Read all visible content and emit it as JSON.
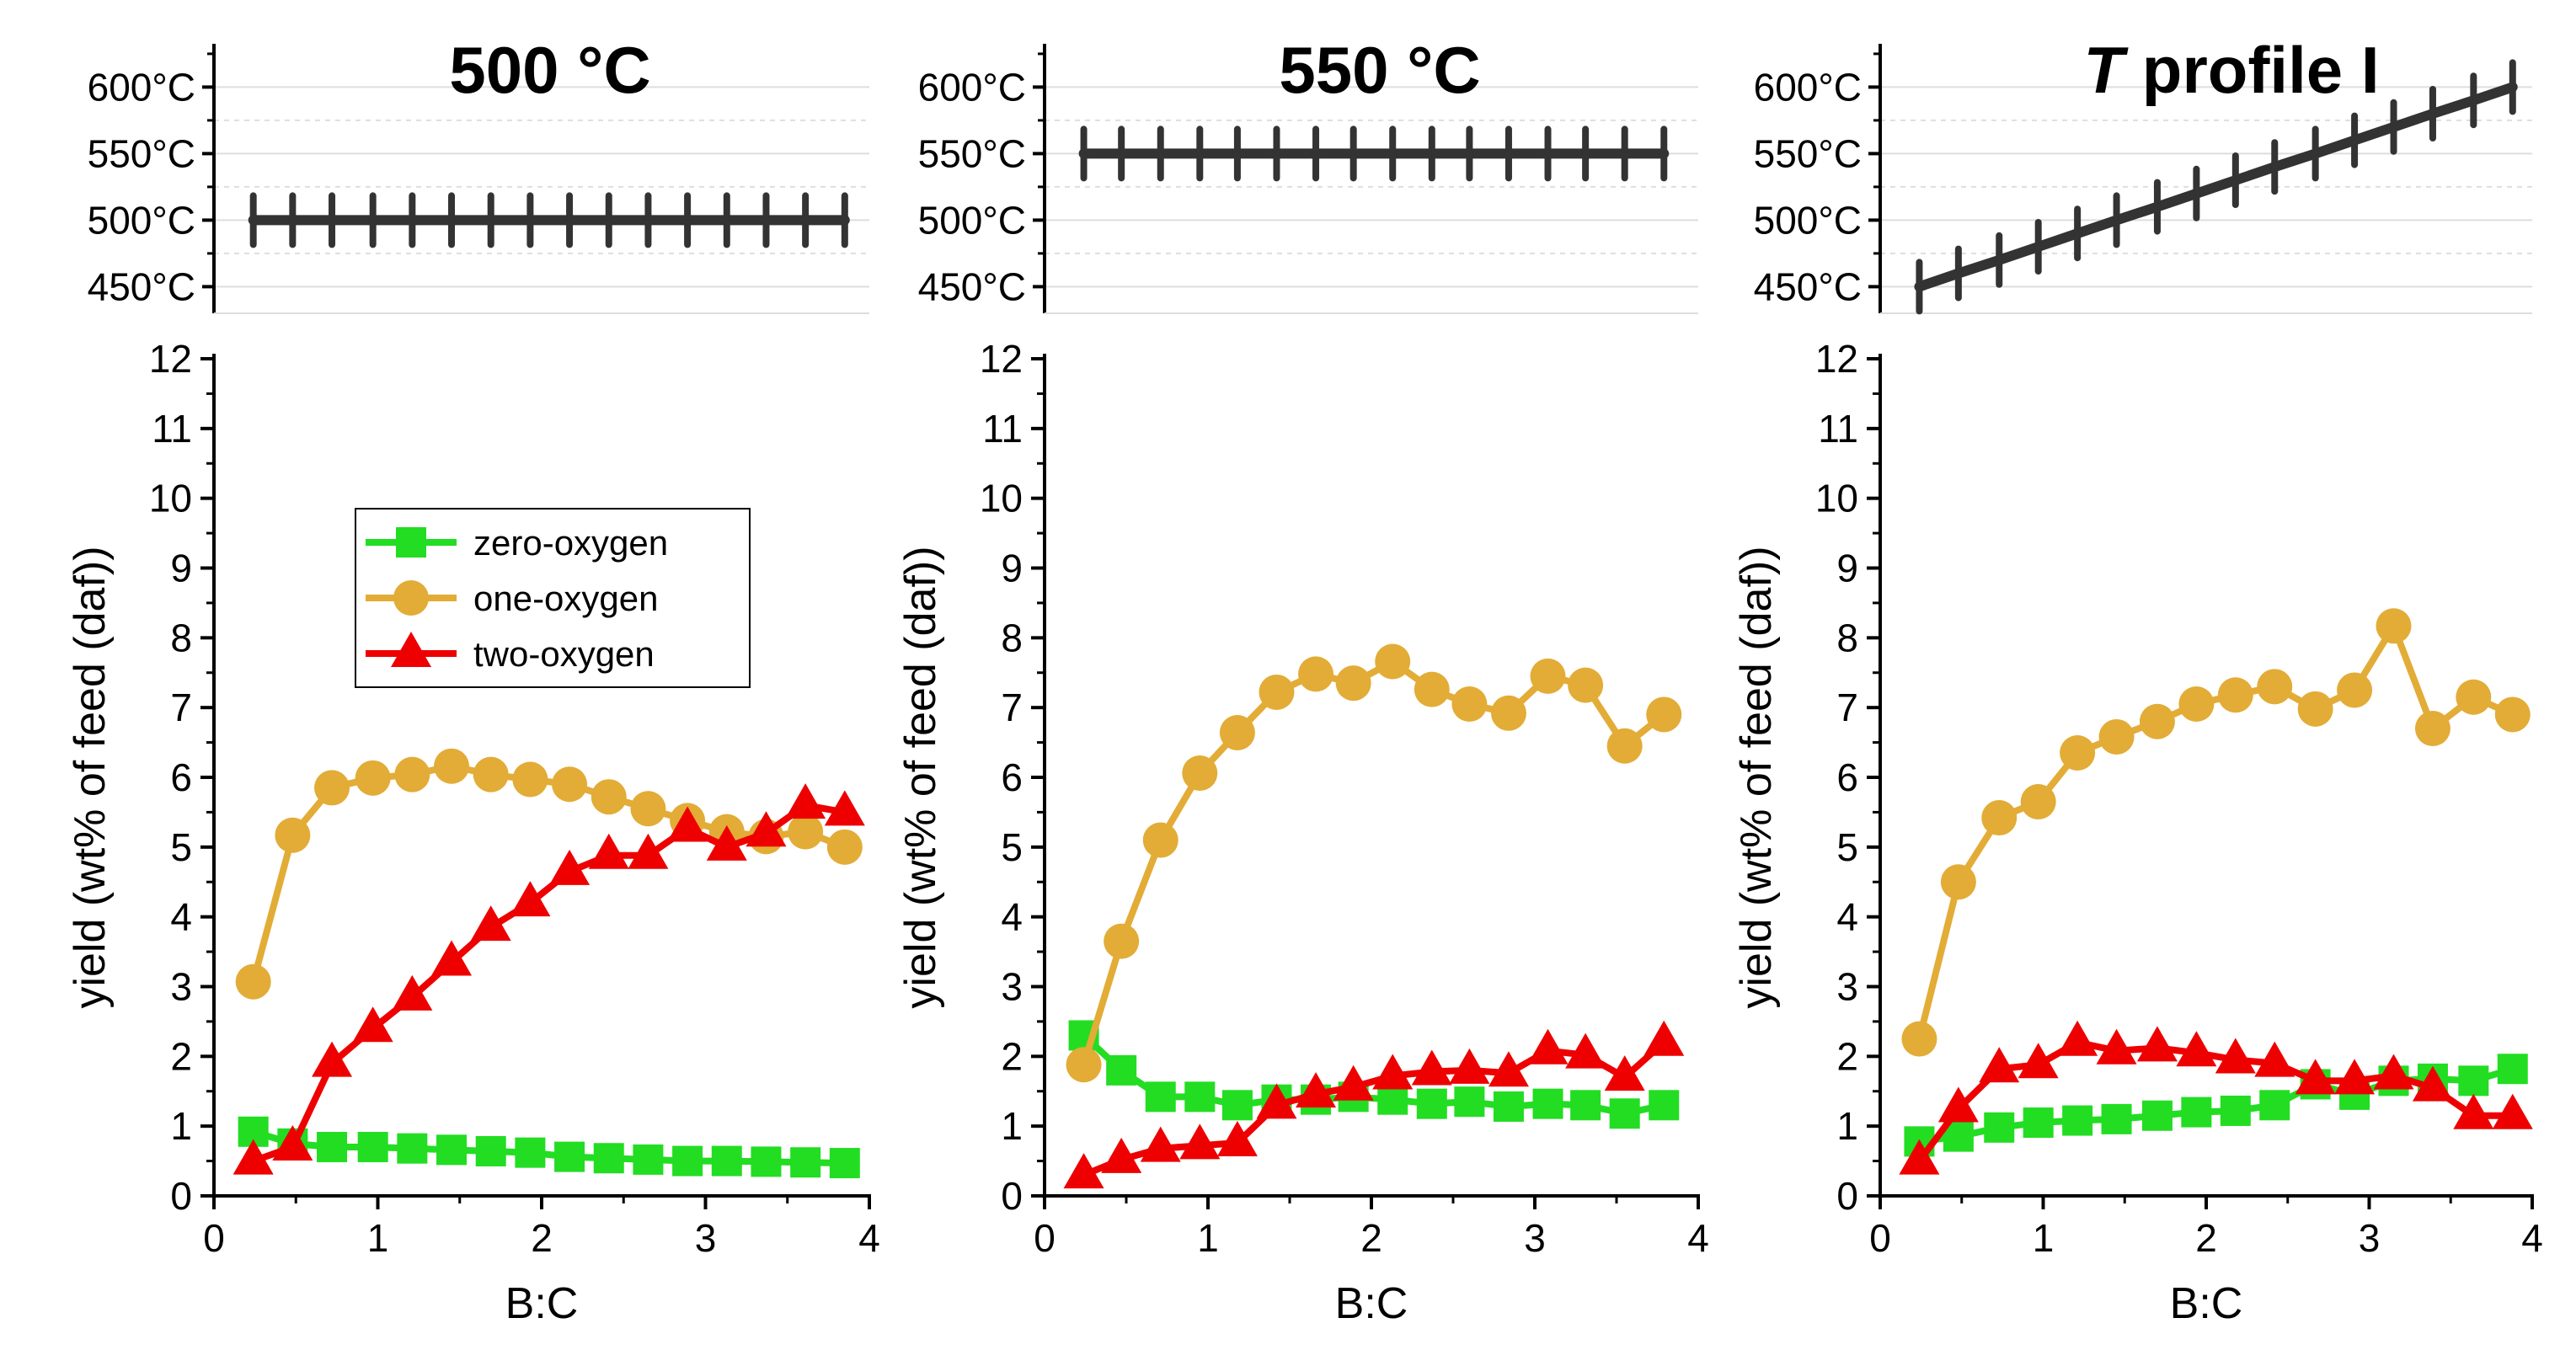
{
  "chart_data": [
    {
      "type": "line",
      "panel": "500 °C",
      "title": "500 °C",
      "xlabel": "B:C",
      "ylabel": "yield (wt% of feed (daf))",
      "xlim": [
        0,
        4
      ],
      "ylim": [
        0,
        12
      ],
      "xticks": [
        "0",
        "1",
        "2",
        "3",
        "4"
      ],
      "yticks": [
        "0",
        "1",
        "2",
        "3",
        "4",
        "5",
        "6",
        "7",
        "8",
        "9",
        "10",
        "11",
        "12"
      ],
      "temperature_inset": {
        "ylim": [
          430,
          630
        ],
        "yticks": [
          "450°C",
          "500°C",
          "550°C",
          "600°C"
        ],
        "x": [
          0.24,
          0.48,
          0.72,
          0.97,
          1.21,
          1.45,
          1.69,
          1.93,
          2.17,
          2.41,
          2.65,
          2.89,
          3.13,
          3.37,
          3.61,
          3.85
        ],
        "values": [
          500,
          500,
          500,
          500,
          500,
          500,
          500,
          500,
          500,
          500,
          500,
          500,
          500,
          500,
          500,
          500
        ]
      },
      "series": [
        {
          "name": "zero-oxygen",
          "color": "#22dd22",
          "marker": "square",
          "x": [
            0.24,
            0.48,
            0.72,
            0.97,
            1.21,
            1.45,
            1.69,
            1.93,
            2.17,
            2.41,
            2.65,
            2.89,
            3.13,
            3.37,
            3.61,
            3.85
          ],
          "values": [
            0.92,
            0.75,
            0.7,
            0.7,
            0.68,
            0.66,
            0.64,
            0.62,
            0.56,
            0.54,
            0.52,
            0.5,
            0.5,
            0.49,
            0.48,
            0.47
          ]
        },
        {
          "name": "one-oxygen",
          "color": "#e2ac36",
          "marker": "circle",
          "x": [
            0.24,
            0.48,
            0.72,
            0.97,
            1.21,
            1.45,
            1.69,
            1.93,
            2.17,
            2.41,
            2.65,
            2.89,
            3.13,
            3.37,
            3.61,
            3.85
          ],
          "values": [
            3.07,
            5.17,
            5.85,
            5.99,
            6.04,
            6.16,
            6.04,
            5.97,
            5.9,
            5.72,
            5.55,
            5.38,
            5.22,
            5.15,
            5.22,
            5.0
          ]
        },
        {
          "name": "two-oxygen",
          "color": "#ee0000",
          "marker": "triangle",
          "x": [
            0.24,
            0.48,
            0.72,
            0.97,
            1.21,
            1.45,
            1.69,
            1.93,
            2.17,
            2.41,
            2.65,
            2.89,
            3.13,
            3.37,
            3.61,
            3.85
          ],
          "values": [
            0.5,
            0.7,
            1.9,
            2.4,
            2.85,
            3.35,
            3.85,
            4.2,
            4.65,
            4.88,
            4.88,
            5.27,
            5.0,
            5.2,
            5.6,
            5.5
          ]
        }
      ]
    },
    {
      "type": "line",
      "panel": "550 °C",
      "title": "550 °C",
      "xlabel": "B:C",
      "ylabel": "yield (wt% of feed (daf))",
      "xlim": [
        0,
        4
      ],
      "ylim": [
        0,
        12
      ],
      "xticks": [
        "0",
        "1",
        "2",
        "3",
        "4"
      ],
      "yticks": [
        "0",
        "1",
        "2",
        "3",
        "4",
        "5",
        "6",
        "7",
        "8",
        "9",
        "10",
        "11",
        "12"
      ],
      "temperature_inset": {
        "ylim": [
          430,
          630
        ],
        "yticks": [
          "450°C",
          "500°C",
          "550°C",
          "600°C"
        ],
        "x": [
          0.24,
          0.47,
          0.71,
          0.95,
          1.18,
          1.42,
          1.66,
          1.89,
          2.13,
          2.37,
          2.6,
          2.84,
          3.08,
          3.31,
          3.55,
          3.79
        ],
        "values": [
          550,
          550,
          550,
          550,
          550,
          550,
          550,
          550,
          550,
          550,
          550,
          550,
          550,
          550,
          550,
          550
        ]
      },
      "series": [
        {
          "name": "zero-oxygen",
          "color": "#22dd22",
          "marker": "square",
          "x": [
            0.24,
            0.47,
            0.71,
            0.95,
            1.18,
            1.42,
            1.66,
            1.89,
            2.13,
            2.37,
            2.6,
            2.84,
            3.08,
            3.31,
            3.55,
            3.79
          ],
          "values": [
            2.3,
            1.8,
            1.42,
            1.42,
            1.3,
            1.38,
            1.38,
            1.42,
            1.38,
            1.32,
            1.35,
            1.28,
            1.32,
            1.3,
            1.18,
            1.3
          ]
        },
        {
          "name": "one-oxygen",
          "color": "#e2ac36",
          "marker": "circle",
          "x": [
            0.24,
            0.47,
            0.71,
            0.95,
            1.18,
            1.42,
            1.66,
            1.89,
            2.13,
            2.37,
            2.6,
            2.84,
            3.08,
            3.31,
            3.55,
            3.79
          ],
          "values": [
            1.88,
            3.65,
            5.1,
            6.06,
            6.64,
            7.22,
            7.48,
            7.35,
            7.66,
            7.26,
            7.05,
            6.92,
            7.45,
            7.32,
            6.45,
            6.9
          ]
        },
        {
          "name": "two-oxygen",
          "color": "#ee0000",
          "marker": "triangle",
          "x": [
            0.24,
            0.47,
            0.71,
            0.95,
            1.18,
            1.42,
            1.66,
            1.89,
            2.13,
            2.37,
            2.6,
            2.84,
            3.08,
            3.31,
            3.55,
            3.79
          ],
          "values": [
            0.3,
            0.52,
            0.68,
            0.72,
            0.76,
            1.3,
            1.46,
            1.56,
            1.72,
            1.78,
            1.8,
            1.76,
            2.08,
            2.02,
            1.7,
            2.2
          ]
        }
      ]
    },
    {
      "type": "line",
      "panel": "T profile I",
      "title_italic": "T",
      "title_rest": " profile I",
      "xlabel": "B:C",
      "ylabel": "yield (wt% of feed (daf))",
      "xlim": [
        0,
        4
      ],
      "ylim": [
        0,
        12
      ],
      "xticks": [
        "0",
        "1",
        "2",
        "3",
        "4"
      ],
      "yticks": [
        "0",
        "1",
        "2",
        "3",
        "4",
        "5",
        "6",
        "7",
        "8",
        "9",
        "10",
        "11",
        "12"
      ],
      "temperature_inset": {
        "ylim": [
          430,
          630
        ],
        "yticks": [
          "450°C",
          "500°C",
          "550°C",
          "600°C"
        ],
        "x": [
          0.24,
          0.48,
          0.73,
          0.97,
          1.21,
          1.45,
          1.7,
          1.94,
          2.18,
          2.42,
          2.67,
          2.91,
          3.15,
          3.39,
          3.64,
          3.88
        ],
        "values": [
          450,
          460,
          470,
          480,
          490,
          500,
          510,
          520,
          530,
          540,
          550,
          560,
          570,
          580,
          590,
          600
        ]
      },
      "series": [
        {
          "name": "zero-oxygen",
          "color": "#22dd22",
          "marker": "square",
          "x": [
            0.24,
            0.48,
            0.73,
            0.97,
            1.21,
            1.45,
            1.7,
            1.94,
            2.18,
            2.42,
            2.67,
            2.91,
            3.15,
            3.39,
            3.64,
            3.88
          ],
          "values": [
            0.78,
            0.85,
            0.98,
            1.05,
            1.08,
            1.1,
            1.15,
            1.2,
            1.22,
            1.3,
            1.6,
            1.45,
            1.65,
            1.68,
            1.65,
            1.82
          ]
        },
        {
          "name": "one-oxygen",
          "color": "#e2ac36",
          "marker": "circle",
          "x": [
            0.24,
            0.48,
            0.73,
            0.97,
            1.21,
            1.45,
            1.7,
            1.94,
            2.18,
            2.42,
            2.67,
            2.91,
            3.15,
            3.39,
            3.64,
            3.88
          ],
          "values": [
            2.25,
            4.5,
            5.42,
            5.65,
            6.35,
            6.58,
            6.8,
            7.05,
            7.18,
            7.3,
            6.98,
            7.25,
            8.17,
            6.7,
            7.15,
            6.9
          ]
        },
        {
          "name": "two-oxygen",
          "color": "#ee0000",
          "marker": "triangle",
          "x": [
            0.24,
            0.48,
            0.73,
            0.97,
            1.21,
            1.45,
            1.7,
            1.94,
            2.18,
            2.42,
            2.67,
            2.91,
            3.15,
            3.39,
            3.64,
            3.88
          ],
          "values": [
            0.5,
            1.25,
            1.82,
            1.88,
            2.2,
            2.08,
            2.12,
            2.05,
            1.95,
            1.9,
            1.65,
            1.65,
            1.72,
            1.55,
            1.15,
            1.15
          ]
        }
      ]
    }
  ],
  "legend": {
    "placement": "upper-left of first panel",
    "entries": [
      "zero-oxygen",
      "one-oxygen",
      "two-oxygen"
    ]
  }
}
